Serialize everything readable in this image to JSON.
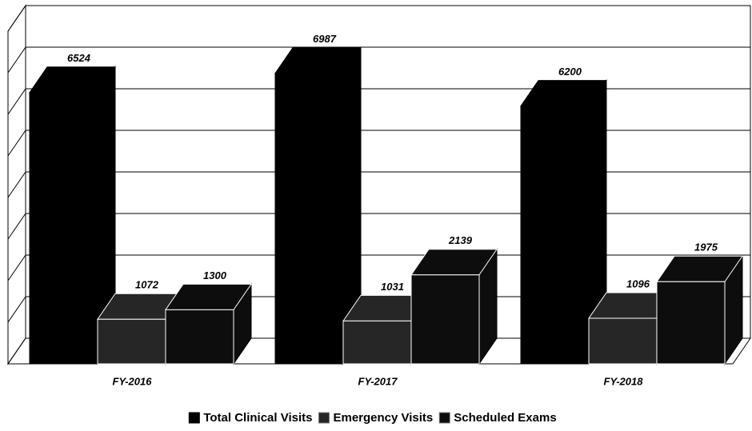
{
  "chart_data": {
    "type": "bar",
    "categories": [
      "FY-2016",
      "FY-2017",
      "FY-2018"
    ],
    "series": [
      {
        "name": "Total Clinical Visits",
        "color": "#000000",
        "values": [
          6524,
          6987,
          6200
        ]
      },
      {
        "name": "Emergency Visits",
        "color": "#262626",
        "values": [
          1072,
          1031,
          1096
        ]
      },
      {
        "name": "Scheduled Exams",
        "color": "#0d0d0d",
        "values": [
          1300,
          2139,
          1975
        ]
      }
    ],
    "ylim": [
      0,
      8000
    ],
    "yticks": [
      0,
      1000,
      2000,
      3000,
      4000,
      5000,
      6000,
      7000,
      8000
    ],
    "grid": true,
    "legend": "bottom"
  }
}
